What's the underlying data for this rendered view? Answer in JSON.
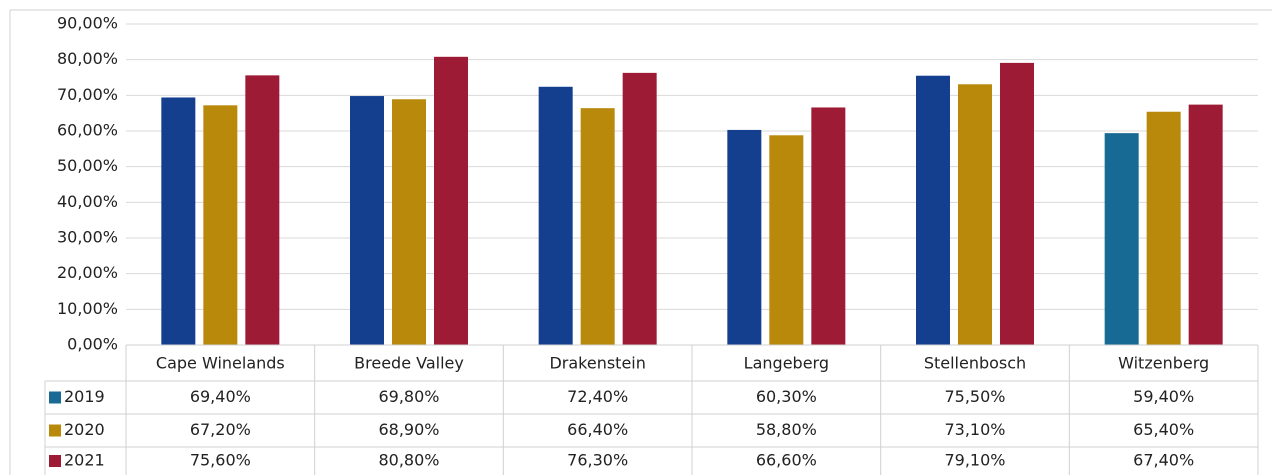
{
  "chart_data": {
    "type": "bar",
    "categories": [
      "Cape Winelands",
      "Breede Valley",
      "Drakenstein",
      "Langeberg",
      "Stellenbosch",
      "Witzenberg"
    ],
    "series": [
      {
        "name": "2019",
        "color": "#1a6a96",
        "bar_colors": [
          "#143f8f",
          "#143f8f",
          "#143f8f",
          "#143f8f",
          "#143f8f",
          "#166a93"
        ],
        "values": [
          69.4,
          69.8,
          72.4,
          60.3,
          75.5,
          59.4
        ],
        "value_labels": [
          "69,40%",
          "69,80%",
          "72,40%",
          "60,30%",
          "75,50%",
          "59,40%"
        ]
      },
      {
        "name": "2020",
        "color": "#b8890a",
        "values": [
          67.2,
          68.9,
          66.4,
          58.8,
          73.1,
          65.4
        ],
        "value_labels": [
          "67,20%",
          "68,90%",
          "66,40%",
          "58,80%",
          "73,10%",
          "65,40%"
        ]
      },
      {
        "name": "2021",
        "color": "#9e1b36",
        "values": [
          75.6,
          80.8,
          76.3,
          66.6,
          79.1,
          67.4
        ],
        "value_labels": [
          "75,60%",
          "80,80%",
          "76,30%",
          "66,60%",
          "79,10%",
          "67,40%"
        ]
      }
    ],
    "ylim": [
      0,
      90
    ],
    "yticks": [
      {
        "value": 0,
        "label": "0,00%"
      },
      {
        "value": 10,
        "label": "10,00%"
      },
      {
        "value": 20,
        "label": "20,00%"
      },
      {
        "value": 30,
        "label": "30,00%"
      },
      {
        "value": 40,
        "label": "40,00%"
      },
      {
        "value": 50,
        "label": "50,00%"
      },
      {
        "value": 60,
        "label": "60,00%"
      },
      {
        "value": 70,
        "label": "70,00%"
      },
      {
        "value": 80,
        "label": "80,00%"
      },
      {
        "value": 90,
        "label": "90,00%"
      }
    ],
    "grid": true,
    "data_table": true
  }
}
